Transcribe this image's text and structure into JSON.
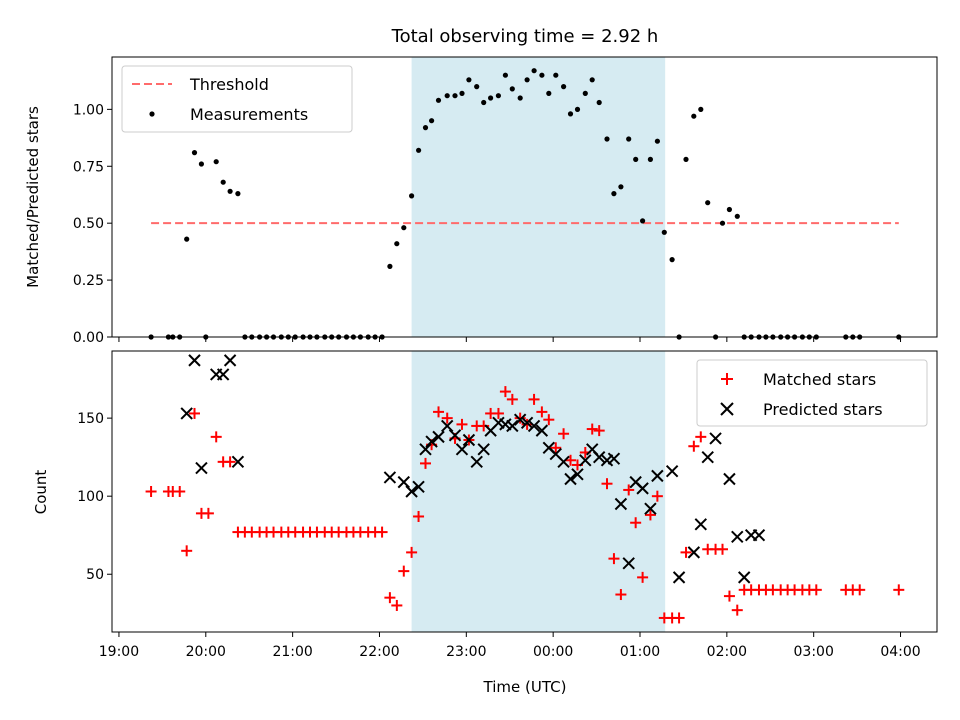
{
  "chart_data": [
    {
      "type": "scatter",
      "title": "Total observing time = 2.92 h",
      "ylabel": "Matched/Predicted stars",
      "ylim": [
        0,
        1.23
      ],
      "yticks": [
        0.0,
        0.25,
        0.5,
        0.75,
        1.0
      ],
      "ytick_labels": [
        "0.00",
        "0.25",
        "0.50",
        "0.75",
        "1.00"
      ],
      "legend_position": "upper-left",
      "shaded_span": {
        "start_hours": 22.37,
        "end_hours": 25.29,
        "color": "#add8e6"
      },
      "threshold": {
        "name": "Threshold",
        "value": 0.5,
        "x_start_hours": 19.37,
        "x_end_hours": 27.98,
        "color": "#ff6b6b"
      },
      "series": [
        {
          "name": "Measurements",
          "marker": "dot",
          "color": "#000000",
          "x_hours": [
            19.37,
            19.57,
            19.62,
            19.7,
            19.78,
            19.87,
            19.95,
            20.0,
            20.12,
            20.2,
            20.28,
            20.37,
            20.45,
            20.53,
            20.62,
            20.7,
            20.78,
            20.87,
            20.95,
            21.03,
            21.12,
            21.2,
            21.28,
            21.37,
            21.45,
            21.53,
            21.62,
            21.7,
            21.78,
            21.87,
            21.95,
            22.03,
            22.12,
            22.2,
            22.28,
            22.37,
            22.45,
            22.53,
            22.6,
            22.68,
            22.78,
            22.87,
            22.95,
            23.03,
            23.12,
            23.2,
            23.28,
            23.37,
            23.45,
            23.53,
            23.62,
            23.7,
            23.78,
            23.87,
            23.95,
            24.03,
            24.12,
            24.2,
            24.28,
            24.37,
            24.45,
            24.53,
            24.62,
            24.7,
            24.78,
            24.87,
            24.95,
            25.03,
            25.12,
            25.2,
            25.28,
            25.37,
            25.45,
            25.53,
            25.62,
            25.7,
            25.78,
            25.87,
            25.95,
            26.03,
            26.12,
            26.2,
            26.28,
            26.37,
            26.45,
            26.53,
            26.62,
            26.7,
            26.78,
            26.87,
            26.95,
            27.03,
            27.37,
            27.45,
            27.53,
            27.98
          ],
          "y": [
            0.0,
            0.0,
            0.0,
            0.0,
            0.43,
            0.81,
            0.76,
            0.0,
            0.77,
            0.68,
            0.64,
            0.63,
            0.0,
            0.0,
            0.0,
            0.0,
            0.0,
            0.0,
            0.0,
            0.0,
            0.0,
            0.0,
            0.0,
            0.0,
            0.0,
            0.0,
            0.0,
            0.0,
            0.0,
            0.0,
            0.0,
            0.0,
            0.31,
            0.41,
            0.48,
            0.62,
            0.82,
            0.92,
            0.95,
            1.04,
            1.06,
            1.06,
            1.07,
            1.13,
            1.1,
            1.03,
            1.05,
            1.06,
            1.15,
            1.09,
            1.05,
            1.13,
            1.17,
            1.15,
            1.07,
            1.15,
            1.1,
            0.98,
            1.0,
            1.07,
            1.13,
            1.03,
            0.87,
            0.63,
            0.66,
            0.87,
            0.78,
            0.51,
            0.78,
            0.86,
            0.46,
            0.34,
            0.0,
            0.78,
            0.97,
            1.0,
            0.59,
            0.0,
            0.5,
            0.56,
            0.53,
            0.0,
            0.0,
            0.0,
            0.0,
            0.0,
            0.0,
            0.0,
            0.0,
            0.0,
            0.0,
            0.0,
            0.0,
            0.0,
            0.0,
            0.0
          ]
        }
      ]
    },
    {
      "type": "scatter",
      "xlabel": "Time (UTC)",
      "ylabel": "Count",
      "ylim": [
        13,
        193
      ],
      "yticks": [
        50,
        100,
        150
      ],
      "ytick_labels": [
        "50",
        "100",
        "150"
      ],
      "xlim_hours": [
        18.92,
        28.42
      ],
      "xticks_hours": [
        19,
        20,
        21,
        22,
        23,
        24,
        25,
        26,
        27,
        28
      ],
      "xtick_labels": [
        "19:00",
        "20:00",
        "21:00",
        "22:00",
        "23:00",
        "00:00",
        "01:00",
        "02:00",
        "03:00",
        "04:00"
      ],
      "legend_position": "upper-right",
      "shaded_span": {
        "start_hours": 22.37,
        "end_hours": 25.29,
        "color": "#add8e6"
      },
      "series": [
        {
          "name": "Matched stars",
          "marker": "plus",
          "color": "#ff0000",
          "x_hours": [
            19.37,
            19.57,
            19.62,
            19.7,
            19.78,
            19.87,
            19.95,
            20.03,
            20.12,
            20.2,
            20.28,
            20.37,
            20.45,
            20.53,
            20.62,
            20.7,
            20.78,
            20.87,
            20.95,
            21.03,
            21.12,
            21.2,
            21.28,
            21.37,
            21.45,
            21.53,
            21.62,
            21.7,
            21.78,
            21.87,
            21.95,
            22.03,
            22.12,
            22.2,
            22.28,
            22.37,
            22.45,
            22.53,
            22.6,
            22.68,
            22.78,
            22.87,
            22.95,
            23.03,
            23.12,
            23.2,
            23.28,
            23.37,
            23.45,
            23.53,
            23.62,
            23.7,
            23.78,
            23.87,
            23.95,
            24.03,
            24.12,
            24.2,
            24.28,
            24.37,
            24.45,
            24.53,
            24.62,
            24.7,
            24.78,
            24.87,
            24.95,
            25.03,
            25.12,
            25.2,
            25.28,
            25.37,
            25.45,
            25.53,
            25.62,
            25.7,
            25.78,
            25.87,
            25.95,
            26.03,
            26.12,
            26.2,
            26.28,
            26.37,
            26.45,
            26.53,
            26.62,
            26.7,
            26.78,
            26.87,
            26.95,
            27.03,
            27.37,
            27.45,
            27.53,
            27.98
          ],
          "y": [
            103,
            103,
            103,
            103,
            65,
            153,
            89,
            89,
            138,
            122,
            122,
            77,
            77,
            77,
            77,
            77,
            77,
            77,
            77,
            77,
            77,
            77,
            77,
            77,
            77,
            77,
            77,
            77,
            77,
            77,
            77,
            77,
            35,
            30,
            52,
            64,
            87,
            121,
            133,
            154,
            150,
            137,
            146,
            136,
            145,
            145,
            153,
            153,
            167,
            162,
            150,
            146,
            162,
            154,
            149,
            131,
            140,
            123,
            120,
            128,
            143,
            142,
            108,
            60,
            37,
            104,
            83,
            48,
            88,
            100,
            22,
            22,
            22,
            64,
            132,
            138,
            66,
            66,
            66,
            36,
            27,
            40,
            40,
            40,
            40,
            40,
            40,
            40,
            40,
            40,
            40,
            40,
            40,
            40,
            40,
            40
          ]
        },
        {
          "name": "Predicted stars",
          "marker": "x",
          "color": "#000000",
          "x_hours": [
            19.78,
            19.87,
            19.95,
            20.12,
            20.2,
            20.28,
            20.37,
            22.12,
            22.28,
            22.37,
            22.45,
            22.53,
            22.6,
            22.68,
            22.78,
            22.87,
            22.95,
            23.03,
            23.12,
            23.2,
            23.28,
            23.37,
            23.45,
            23.53,
            23.62,
            23.7,
            23.78,
            23.87,
            23.95,
            24.03,
            24.12,
            24.2,
            24.28,
            24.37,
            24.45,
            24.53,
            24.62,
            24.7,
            24.78,
            24.87,
            24.95,
            25.03,
            25.12,
            25.2,
            25.37,
            25.45,
            25.62,
            25.7,
            25.78,
            25.87,
            26.03,
            26.12,
            26.2,
            26.28,
            26.37
          ],
          "y": [
            153,
            187,
            118,
            178,
            178,
            187,
            122,
            112,
            109,
            103,
            106,
            130,
            135,
            138,
            145,
            139,
            130,
            136,
            122,
            130,
            142,
            147,
            146,
            145,
            149,
            147,
            145,
            142,
            131,
            127,
            122,
            111,
            114,
            123,
            130,
            125,
            123,
            124,
            95,
            57,
            109,
            105,
            92,
            113,
            116,
            48,
            64,
            82,
            125,
            137,
            111,
            74,
            48,
            75,
            75
          ]
        }
      ]
    }
  ]
}
